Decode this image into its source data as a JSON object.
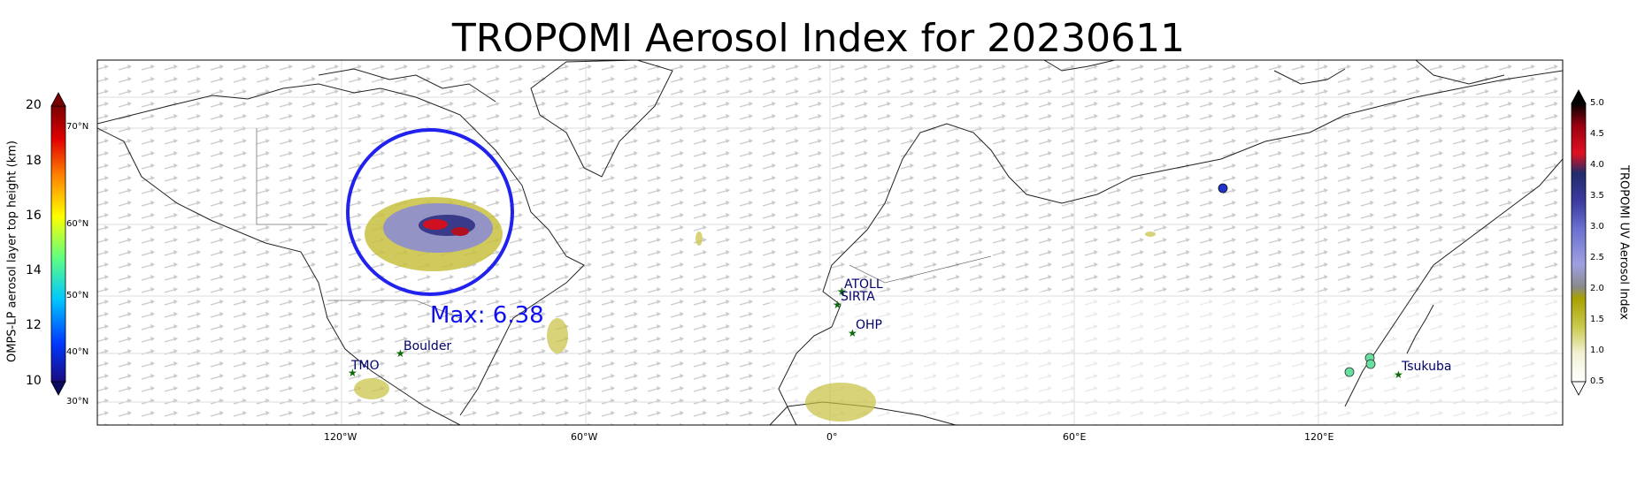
{
  "title": "TROPOMI Aerosol Index for 20230611",
  "max_label": "Max: 6.38",
  "left_colorbar": {
    "label": "OMPS-LP aerosol layer top height (km)",
    "ticks": [
      "20",
      "18",
      "16",
      "14",
      "12",
      "10"
    ],
    "lat_labels": [
      "70°N",
      "60°N",
      "50°N",
      "40°N",
      "30°N"
    ],
    "colors": [
      "#1a0a80",
      "#0038ff",
      "#00c8ff",
      "#60ff80",
      "#ffff00",
      "#ff8000",
      "#e00000",
      "#7a0000"
    ]
  },
  "right_colorbar": {
    "label": "TROPOMI UV Aerosol Index",
    "ticks": [
      "5.0",
      "4.5",
      "4.0",
      "3.5",
      "3.0",
      "2.5",
      "2.0",
      "1.5",
      "1.0",
      "0.5"
    ],
    "colors": [
      "#ffffff",
      "#f2f2d6",
      "#c8c84a",
      "#a8a000",
      "#8a8a8a",
      "#9ea0e0",
      "#6a70d0",
      "#3a3aa0",
      "#222a6a",
      "#e01020",
      "#9a0010",
      "#000000"
    ]
  },
  "longitude_labels": [
    "120°W",
    "60°W",
    "0°",
    "60°E",
    "120°E"
  ],
  "stations": [
    {
      "name": "TMO"
    },
    {
      "name": "Boulder"
    },
    {
      "name": "ATOLL"
    },
    {
      "name": "SIRTA"
    },
    {
      "name": "OHP"
    },
    {
      "name": "Tsukuba"
    }
  ],
  "colors": {
    "circle": "#2222ee",
    "station_marker": "#0a6a0a",
    "station_text": "#00006a",
    "max_text": "#1010ee"
  }
}
